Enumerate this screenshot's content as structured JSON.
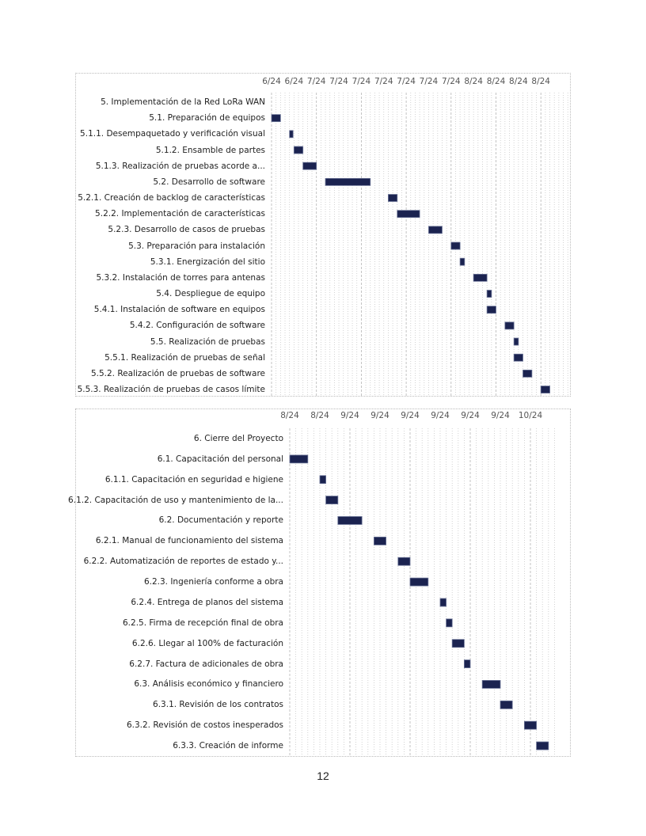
{
  "chart_data": [
    {
      "type": "gantt",
      "unit": "days",
      "span_days": 66,
      "tick_every_days": 5,
      "tick_labels": [
        "6/24",
        "6/24",
        "7/24",
        "7/24",
        "7/24",
        "7/24",
        "7/24",
        "7/24",
        "7/24",
        "8/24",
        "8/24",
        "8/24",
        "8/24"
      ],
      "tasks": [
        {
          "label": "5. Implementación de la Red LoRa WAN",
          "start": null,
          "duration": null
        },
        {
          "label": "5.1. Preparación de equipos",
          "start": 0,
          "duration": 2
        },
        {
          "label": "5.1.1. Desempaquetado y verificación visual",
          "start": 4,
          "duration": 0.8
        },
        {
          "label": "5.1.2. Ensamble de partes",
          "start": 5,
          "duration": 2
        },
        {
          "label": "5.1.3. Realización de pruebas acorde a...",
          "start": 7,
          "duration": 3
        },
        {
          "label": "5.2. Desarrollo de software",
          "start": 12,
          "duration": 10
        },
        {
          "label": "5.2.1. Creación de backlog de características",
          "start": 26,
          "duration": 2
        },
        {
          "label": "5.2.2. Implementación de características",
          "start": 28,
          "duration": 5
        },
        {
          "label": "5.2.3. Desarrollo de casos de pruebas",
          "start": 35,
          "duration": 3
        },
        {
          "label": "5.3. Preparación para instalación",
          "start": 40,
          "duration": 2
        },
        {
          "label": "5.3.1. Energización del sitio",
          "start": 42,
          "duration": 1
        },
        {
          "label": "5.3.2. Instalación de torres para antenas",
          "start": 45,
          "duration": 3
        },
        {
          "label": "5.4. Despliegue de equipo",
          "start": 48,
          "duration": 1
        },
        {
          "label": "5.4.1. Instalación de software en equipos",
          "start": 48,
          "duration": 2
        },
        {
          "label": "5.4.2. Configuración de software",
          "start": 52,
          "duration": 2
        },
        {
          "label": "5.5. Realización de pruebas",
          "start": 54,
          "duration": 1
        },
        {
          "label": "5.5.1. Realización de pruebas de señal",
          "start": 54,
          "duration": 2
        },
        {
          "label": "5.5.2. Realización de pruebas de software",
          "start": 56,
          "duration": 2
        },
        {
          "label": "5.5.3. Realización de pruebas de casos límite",
          "start": 60,
          "duration": 2
        }
      ]
    },
    {
      "type": "gantt",
      "unit": "days",
      "span_days": 44,
      "tick_every_days": 5,
      "tick_labels": [
        "8/24",
        "8/24",
        "9/24",
        "9/24",
        "9/24",
        "9/24",
        "9/24",
        "9/24",
        "10/24"
      ],
      "tasks": [
        {
          "label": "6. Cierre del Proyecto",
          "start": null,
          "duration": null
        },
        {
          "label": "6.1. Capacitación del personal",
          "start": 0,
          "duration": 3
        },
        {
          "label": "6.1.1. Capacitación en seguridad e higiene",
          "start": 5,
          "duration": 1
        },
        {
          "label": "6.1.2. Capacitación de uso y mantenimiento de la...",
          "start": 6,
          "duration": 2
        },
        {
          "label": "6.2. Documentación y reporte",
          "start": 8,
          "duration": 4
        },
        {
          "label": "6.2.1. Manual de funcionamiento del sistema",
          "start": 14,
          "duration": 2
        },
        {
          "label": "6.2.2. Automatización de reportes de estado y...",
          "start": 18,
          "duration": 2
        },
        {
          "label": "6.2.3. Ingeniería conforme a obra",
          "start": 20,
          "duration": 3
        },
        {
          "label": "6.2.4. Entrega de planos del sistema",
          "start": 25,
          "duration": 1
        },
        {
          "label": "6.2.5. Firma de recepción final de obra",
          "start": 26,
          "duration": 1
        },
        {
          "label": "6.2.6. Llegar al 100% de facturación",
          "start": 27,
          "duration": 2
        },
        {
          "label": "6.2.7. Factura de adicionales de obra",
          "start": 29,
          "duration": 1
        },
        {
          "label": "6.3. Análisis económico y financiero",
          "start": 32,
          "duration": 3
        },
        {
          "label": "6.3.1. Revisión de los contratos",
          "start": 35,
          "duration": 2
        },
        {
          "label": "6.3.2. Revisión de costos inesperados",
          "start": 39,
          "duration": 2
        },
        {
          "label": "6.3.3. Creación de informe",
          "start": 41,
          "duration": 2
        }
      ]
    }
  ],
  "colors": {
    "bar": "#1b2350",
    "bar_border": "#6a7396",
    "grid": "#c8c8c8"
  },
  "page_number": "12"
}
